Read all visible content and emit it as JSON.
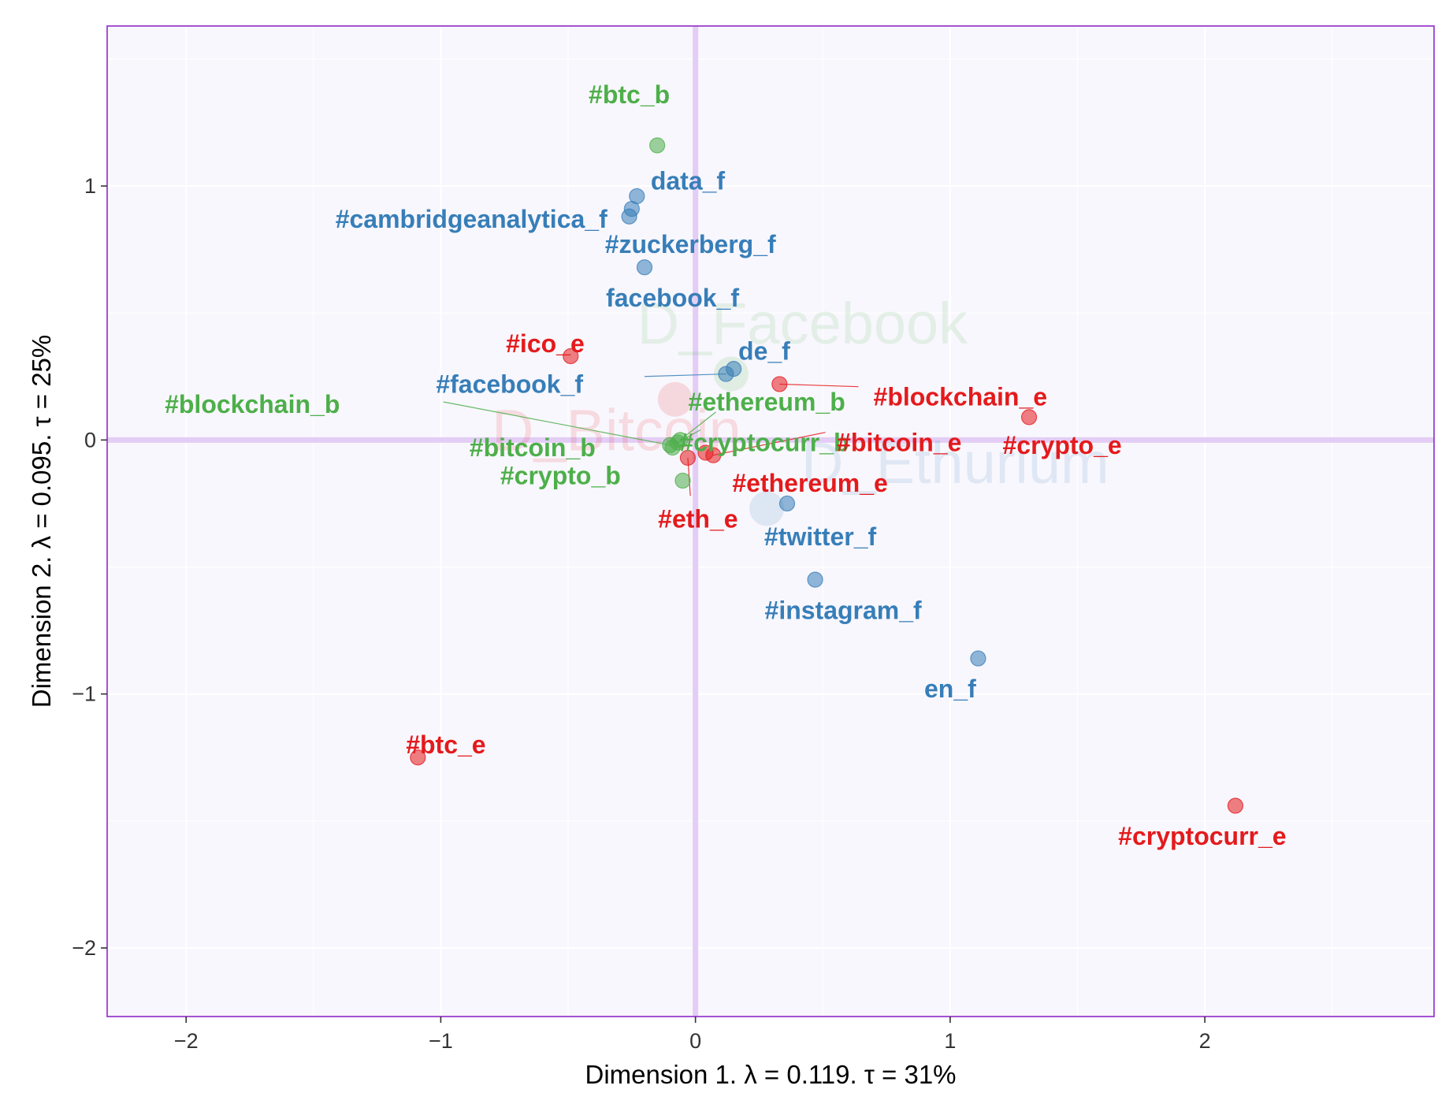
{
  "chart_data": {
    "type": "scatter",
    "title": "",
    "xlabel": "Dimension 1.   λ = 0.119.   τ = 31%",
    "ylabel": "Dimension 2.   λ = 0.095.   τ = 25%",
    "xlim": [
      -2.31,
      2.9
    ],
    "ylim": [
      -2.27,
      1.63
    ],
    "xticks": [
      -2,
      -1,
      0,
      1,
      2
    ],
    "yticks": [
      -2,
      -1,
      0,
      1
    ],
    "xtick_labels": [
      "−2",
      "−1",
      "0",
      "1",
      "2"
    ],
    "ytick_labels": [
      "−2",
      "−1",
      "0",
      "1"
    ],
    "grid": true,
    "legend": "none",
    "colors": {
      "bitcoin": "#4daf4a",
      "ethereum": "#e41a1c",
      "facebook": "#377eb8",
      "panel_bg": "#f8f7fd",
      "panel_border": "#9a3fd0",
      "origin_line": "#e3cdf5"
    },
    "centroids": [
      {
        "label": "D_Bitcoin",
        "group": "ethereum",
        "x": -0.08,
        "y": 0.16
      },
      {
        "label": "D_Facebook",
        "group": "bitcoin",
        "x": 0.14,
        "y": 0.26
      },
      {
        "label": "D_Ethurium",
        "group": "facebook",
        "x": 0.28,
        "y": -0.27
      }
    ],
    "series": [
      {
        "group": "bitcoin",
        "points": [
          {
            "label": "#btc_b",
            "x": -0.15,
            "y": 1.16
          },
          {
            "label": "#blockchain_b",
            "x": -0.1,
            "y": -0.02
          },
          {
            "label": "#ethereum_b",
            "x": -0.06,
            "y": 0.0
          },
          {
            "label": "#cryptocurr_b",
            "x": -0.07,
            "y": -0.01
          },
          {
            "label": "#bitcoin_b",
            "x": -0.09,
            "y": -0.03
          },
          {
            "label": "#crypto_b",
            "x": -0.05,
            "y": -0.16
          }
        ]
      },
      {
        "group": "facebook",
        "points": [
          {
            "label": "data_f",
            "x": -0.23,
            "y": 0.96
          },
          {
            "label": "#cambridgeanalytica_f",
            "x": -0.25,
            "y": 0.91
          },
          {
            "label": "#zuckerberg_f",
            "x": -0.26,
            "y": 0.88
          },
          {
            "label": "facebook_f",
            "x": -0.2,
            "y": 0.68
          },
          {
            "label": "de_f",
            "x": 0.15,
            "y": 0.28
          },
          {
            "label": "#facebook_f",
            "x": 0.12,
            "y": 0.26
          },
          {
            "label": "#twitter_f",
            "x": 0.36,
            "y": -0.25
          },
          {
            "label": "#instagram_f",
            "x": 0.47,
            "y": -0.55
          },
          {
            "label": "en_f",
            "x": 1.11,
            "y": -0.86
          }
        ]
      },
      {
        "group": "ethereum",
        "points": [
          {
            "label": "#ico_e",
            "x": -0.49,
            "y": 0.33
          },
          {
            "label": "#blockchain_e",
            "x": 0.33,
            "y": 0.22
          },
          {
            "label": "#crypto_e",
            "x": 1.31,
            "y": 0.09
          },
          {
            "label": "#bitcoin_e",
            "x": 0.07,
            "y": -0.06
          },
          {
            "label": "#ethereum_e",
            "x": 0.04,
            "y": -0.05
          },
          {
            "label": "#eth_e",
            "x": -0.03,
            "y": -0.07
          },
          {
            "label": "#btc_e",
            "x": -1.09,
            "y": -1.25
          },
          {
            "label": "#cryptocurr_e",
            "x": 2.12,
            "y": -1.44
          }
        ]
      }
    ]
  }
}
